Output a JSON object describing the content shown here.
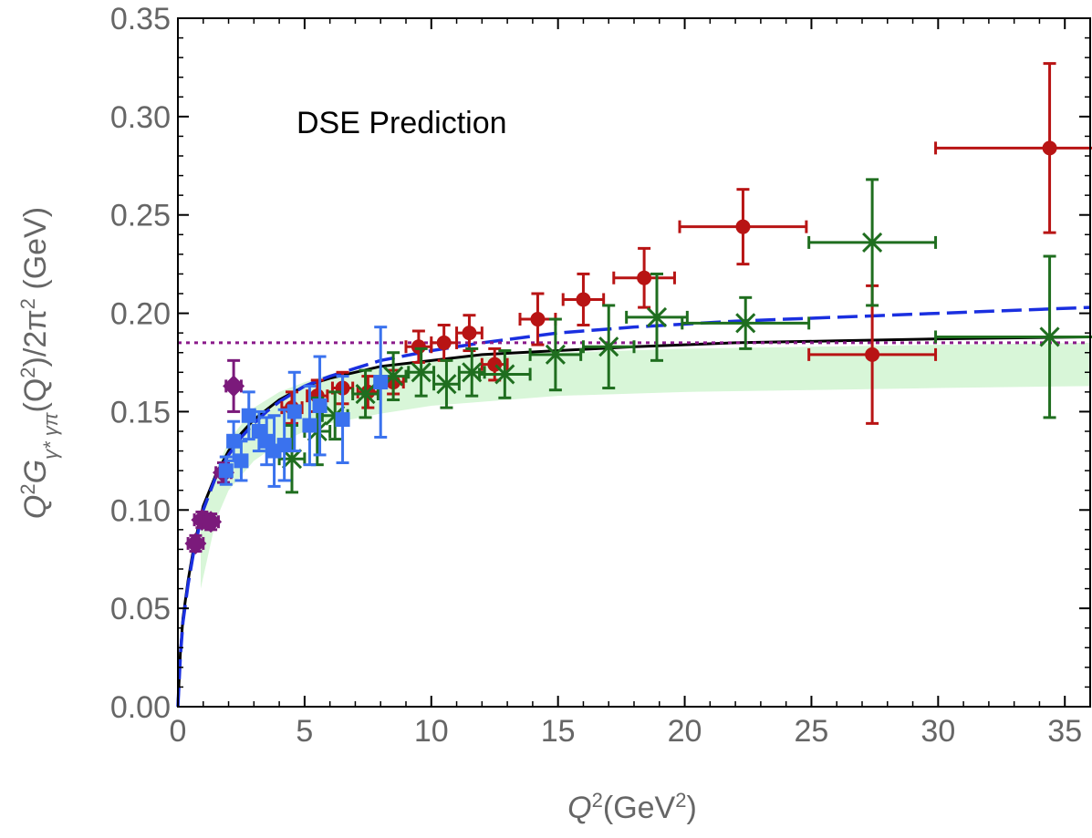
{
  "chart_data": {
    "type": "scatter",
    "title": "",
    "annotation": "DSE Prediction",
    "xlabel": {
      "base": "Q",
      "sup1": "2",
      "text": "(GeV",
      "sup2": "2",
      "close": ")"
    },
    "ylabel": {
      "p1": "Q",
      "s1": "2",
      "p2": "G",
      "sub": "γ* γπ",
      "p3": "(Q",
      "s2": "2",
      "p4": ")/2π",
      "s3": "2",
      "p5": " (GeV)"
    },
    "xlim": [
      0,
      36
    ],
    "ylim": [
      0,
      0.35
    ],
    "xticks": [
      0,
      5,
      10,
      15,
      20,
      25,
      30,
      35
    ],
    "yticks": [
      0.0,
      0.05,
      0.1,
      0.15,
      0.2,
      0.25,
      0.3,
      0.35
    ],
    "xtick_labels": [
      "0",
      "5",
      "10",
      "15",
      "20",
      "25",
      "30",
      "35"
    ],
    "ytick_labels": [
      "0.00",
      "0.05",
      "0.10",
      "0.15",
      "0.20",
      "0.25",
      "0.30",
      "0.35"
    ],
    "grid": false,
    "colors": {
      "purple": "#7b1a7b",
      "blue": "#3a72ee",
      "green": "#1f6e1f",
      "red": "#b81414",
      "black": "#000000",
      "dashed_blue": "#1a2fe0",
      "band": "#d8f6d8",
      "dotted": "#8a1a8a"
    },
    "series": [
      {
        "marker": "diamond",
        "color_key": "purple",
        "points": [
          {
            "x": 0.7,
            "y": 0.083,
            "ey": 0.004,
            "ex": 0.3
          },
          {
            "x": 0.95,
            "y": 0.095,
            "ey": 0.004,
            "ex": 0.3
          },
          {
            "x": 1.3,
            "y": 0.094,
            "ey": 0.004,
            "ex": 0.3
          },
          {
            "x": 1.8,
            "y": 0.119,
            "ey": 0.005,
            "ex": 0.3
          },
          {
            "x": 2.2,
            "y": 0.163,
            "ey": 0.013,
            "ex": 0.3
          }
        ]
      },
      {
        "marker": "square",
        "color_key": "blue",
        "points": [
          {
            "x": 1.9,
            "y": 0.12,
            "ey": 0.007
          },
          {
            "x": 2.2,
            "y": 0.135,
            "ey": 0.01
          },
          {
            "x": 2.5,
            "y": 0.125,
            "ey": 0.01
          },
          {
            "x": 2.8,
            "y": 0.148,
            "ey": 0.012
          },
          {
            "x": 3.2,
            "y": 0.14,
            "ey": 0.01
          },
          {
            "x": 3.5,
            "y": 0.135,
            "ey": 0.012
          },
          {
            "x": 3.8,
            "y": 0.13,
            "ey": 0.018
          },
          {
            "x": 4.2,
            "y": 0.133,
            "ey": 0.018
          },
          {
            "x": 4.6,
            "y": 0.15,
            "ey": 0.02
          },
          {
            "x": 5.2,
            "y": 0.143,
            "ey": 0.02
          },
          {
            "x": 5.6,
            "y": 0.153,
            "ey": 0.025
          },
          {
            "x": 6.5,
            "y": 0.146,
            "ey": 0.022
          },
          {
            "x": 8.0,
            "y": 0.165,
            "ey": 0.028
          }
        ]
      },
      {
        "marker": "cross",
        "color_key": "green",
        "points": [
          {
            "x": 4.5,
            "y": 0.126,
            "ey": 0.017,
            "ex": 0.5
          },
          {
            "x": 5.5,
            "y": 0.14,
            "ey": 0.017,
            "ex": 0.5
          },
          {
            "x": 6.2,
            "y": 0.148,
            "ey": 0.012,
            "ex": 0.5
          },
          {
            "x": 7.4,
            "y": 0.159,
            "ey": 0.012,
            "ex": 0.5
          },
          {
            "x": 8.5,
            "y": 0.168,
            "ey": 0.012,
            "ex": 0.5
          },
          {
            "x": 9.6,
            "y": 0.17,
            "ey": 0.012,
            "ex": 0.5
          },
          {
            "x": 10.6,
            "y": 0.164,
            "ey": 0.012,
            "ex": 0.5
          },
          {
            "x": 11.6,
            "y": 0.17,
            "ey": 0.012,
            "ex": 0.5
          },
          {
            "x": 12.9,
            "y": 0.169,
            "ey": 0.012,
            "ex": 1.0
          },
          {
            "x": 14.9,
            "y": 0.179,
            "ey": 0.018,
            "ex": 1.0
          },
          {
            "x": 17.0,
            "y": 0.183,
            "ey": 0.021,
            "ex": 1.0
          },
          {
            "x": 18.9,
            "y": 0.198,
            "ey": 0.022,
            "ex": 1.2
          },
          {
            "x": 22.4,
            "y": 0.195,
            "ey": 0.013,
            "ex": 2.5
          },
          {
            "x": 27.4,
            "y": 0.236,
            "ey": 0.032,
            "ex": 2.5
          },
          {
            "x": 34.4,
            "y": 0.188,
            "ey": 0.041,
            "ex": 4.5
          }
        ]
      },
      {
        "marker": "circle",
        "color_key": "red",
        "points": [
          {
            "x": 4.5,
            "y": 0.152,
            "ey": 0.008,
            "ex": 0.4
          },
          {
            "x": 5.5,
            "y": 0.158,
            "ey": 0.008,
            "ex": 0.4
          },
          {
            "x": 6.5,
            "y": 0.162,
            "ey": 0.008,
            "ex": 0.4
          },
          {
            "x": 7.5,
            "y": 0.16,
            "ey": 0.008,
            "ex": 0.4
          },
          {
            "x": 8.5,
            "y": 0.165,
            "ey": 0.006,
            "ex": 0.4
          },
          {
            "x": 9.5,
            "y": 0.183,
            "ey": 0.008,
            "ex": 0.5
          },
          {
            "x": 10.5,
            "y": 0.185,
            "ey": 0.009,
            "ex": 0.5
          },
          {
            "x": 11.5,
            "y": 0.19,
            "ey": 0.009,
            "ex": 0.5
          },
          {
            "x": 12.5,
            "y": 0.174,
            "ey": 0.008,
            "ex": 0.5
          },
          {
            "x": 14.2,
            "y": 0.197,
            "ey": 0.013,
            "ex": 0.7
          },
          {
            "x": 16.0,
            "y": 0.207,
            "ey": 0.013,
            "ex": 0.8
          },
          {
            "x": 18.4,
            "y": 0.218,
            "ey": 0.015,
            "ex": 1.2
          },
          {
            "x": 22.3,
            "y": 0.244,
            "ey": 0.019,
            "ex": 2.5
          },
          {
            "x": 27.4,
            "y": 0.179,
            "ey": 0.035,
            "ex": 2.5
          },
          {
            "x": 34.4,
            "y": 0.284,
            "ey": 0.043,
            "ex": 4.5
          }
        ]
      }
    ],
    "curves": [
      {
        "style": "solid",
        "color_key": "black",
        "x": [
          0,
          0.1,
          0.2,
          0.4,
          0.6,
          0.8,
          1,
          1.5,
          2,
          2.5,
          3,
          3.5,
          4,
          5,
          6,
          7,
          8,
          10,
          12,
          15,
          18,
          22,
          26,
          30,
          36
        ],
        "y": [
          0,
          0.028,
          0.045,
          0.064,
          0.079,
          0.091,
          0.102,
          0.118,
          0.13,
          0.139,
          0.146,
          0.151,
          0.156,
          0.163,
          0.167,
          0.17,
          0.173,
          0.176,
          0.179,
          0.181,
          0.183,
          0.185,
          0.186,
          0.187,
          0.188
        ]
      },
      {
        "style": "dashed",
        "color_key": "dashed_blue",
        "x": [
          0,
          0.1,
          0.2,
          0.4,
          0.6,
          0.8,
          1,
          1.5,
          2,
          2.5,
          3,
          3.5,
          4,
          5,
          6,
          7,
          8,
          10,
          12,
          15,
          18,
          22,
          26,
          30,
          36
        ],
        "y": [
          0,
          0.026,
          0.043,
          0.062,
          0.077,
          0.089,
          0.1,
          0.117,
          0.128,
          0.137,
          0.144,
          0.15,
          0.155,
          0.163,
          0.168,
          0.172,
          0.176,
          0.181,
          0.185,
          0.19,
          0.193,
          0.196,
          0.198,
          0.2,
          0.203
        ]
      },
      {
        "style": "dotted",
        "color_key": "dotted",
        "x": [
          0,
          36
        ],
        "y": [
          0.185,
          0.185
        ]
      }
    ],
    "band": {
      "color_key": "band",
      "x": [
        0.9,
        1.5,
        2,
        3,
        4,
        5,
        6,
        8,
        10,
        12,
        15,
        20,
        25,
        30,
        36
      ],
      "upper": [
        0.095,
        0.12,
        0.135,
        0.152,
        0.16,
        0.165,
        0.169,
        0.173,
        0.176,
        0.178,
        0.18,
        0.182,
        0.183,
        0.184,
        0.185
      ],
      "lower": [
        0.06,
        0.095,
        0.11,
        0.125,
        0.134,
        0.14,
        0.144,
        0.149,
        0.153,
        0.155,
        0.158,
        0.16,
        0.161,
        0.162,
        0.163
      ]
    }
  }
}
